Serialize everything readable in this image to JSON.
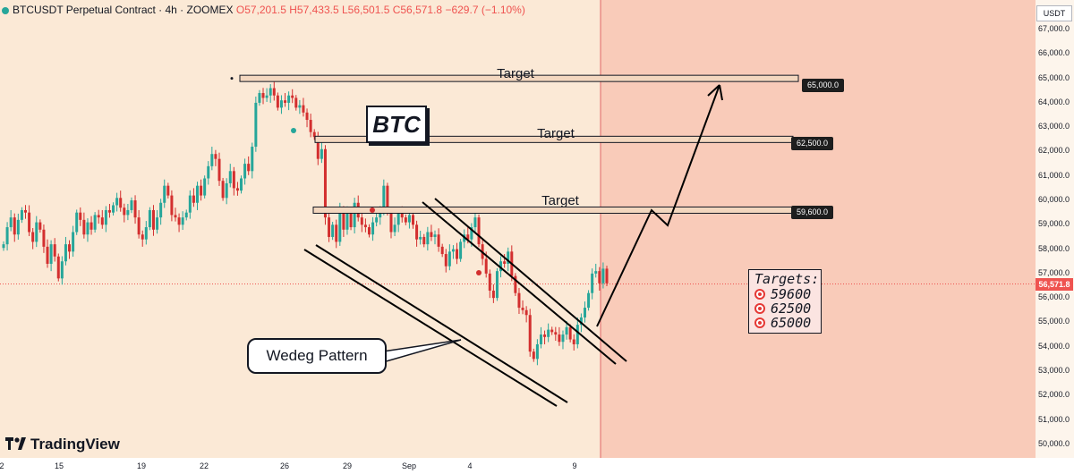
{
  "header": {
    "symbol": "BTCUSDT Perpetual Contract · 4h · ZOOMEX",
    "open": "O57,201.5",
    "high": "H57,433.5",
    "low": "L56,501.5",
    "close": "C56,571.8",
    "change": "−629.7 (−1.10%)"
  },
  "axis_unit": "USDT",
  "last_price_label": "56,571.8",
  "brand": "TradingView",
  "annotations": {
    "btc_label": "BTC",
    "wedge_callout": "Wedeg Pattern",
    "target_word": "Target",
    "targets_title": "Targets:",
    "targets_list": [
      "59600",
      "62500",
      "65000"
    ]
  },
  "target_levels": [
    {
      "label": "Target",
      "price": 65000,
      "price_text": "65,000.0"
    },
    {
      "label": "Target",
      "price": 62500,
      "price_text": "62,500.0"
    },
    {
      "label": "Target",
      "price": 59600,
      "price_text": "59,600.0"
    }
  ],
  "colors": {
    "up": "#26a69a",
    "down": "#d32f2f",
    "background": "#fbe9d6",
    "projection_zone": "#f9cbb9",
    "last_price": "#ef5350"
  },
  "chart_data": {
    "type": "candlestick",
    "y_ticks": [
      "50,000.0",
      "51,000.0",
      "52,000.0",
      "53,000.0",
      "54,000.0",
      "55,000.0",
      "56,000.0",
      "57,000.0",
      "58,000.0",
      "59,000.0",
      "60,000.0",
      "61,000.0",
      "62,000.0",
      "63,000.0",
      "64,000.0",
      "65,000.0",
      "66,000.0",
      "67,000.0"
    ],
    "ylim": [
      49700,
      67700
    ],
    "x_ticks": [
      "2",
      "15",
      "19",
      "22",
      "26",
      "29",
      "Sep",
      "4",
      "9"
    ],
    "last_price": 56571.8,
    "candles_close": [
      58200,
      58900,
      59300,
      58600,
      59200,
      59600,
      59500,
      58700,
      58300,
      59100,
      58800,
      58100,
      57400,
      58200,
      57700,
      56800,
      57500,
      58200,
      57900,
      58700,
      59500,
      59200,
      58600,
      59100,
      58800,
      59400,
      59300,
      59000,
      59600,
      59500,
      59800,
      60100,
      59700,
      59400,
      59600,
      60000,
      59300,
      58600,
      58400,
      58900,
      59600,
      58800,
      59300,
      59900,
      60600,
      60200,
      59400,
      59300,
      59000,
      59300,
      59500,
      60200,
      59900,
      60600,
      60200,
      60900,
      61400,
      61900,
      61700,
      60800,
      60100,
      60700,
      61200,
      60500,
      60400,
      60900,
      61500,
      61200,
      62200,
      64000,
      64400,
      64200,
      64300,
      64600,
      64300,
      63800,
      64100,
      64000,
      64300,
      64200,
      63800,
      63900,
      63600,
      63300,
      62800,
      62600,
      61700,
      62100,
      59300,
      58500,
      59000,
      58300,
      59600,
      58800,
      59500,
      58900,
      59900,
      59300,
      59000,
      58900,
      58600,
      59100,
      59300,
      59600,
      60600,
      59500,
      58700,
      59000,
      59500,
      59300,
      59100,
      59400,
      59000,
      58400,
      58500,
      58200,
      58700,
      58500,
      58600,
      58100,
      57800,
      57300,
      57900,
      58000,
      57600,
      58300,
      58600,
      58400,
      58900,
      59300,
      58200,
      57600,
      57000,
      56300,
      56000,
      57100,
      57500,
      57400,
      57900,
      56900,
      56200,
      55600,
      55500,
      55300,
      53800,
      53500,
      54100,
      54500,
      54400,
      54700,
      54600,
      54500,
      54200,
      54500,
      54800,
      54300,
      54100,
      54900,
      55200,
      55600,
      56200,
      57000,
      57100,
      56600,
      57200,
      56600
    ],
    "series": [
      {
        "name": "BTCUSDT",
        "values": "candles_close"
      }
    ]
  }
}
